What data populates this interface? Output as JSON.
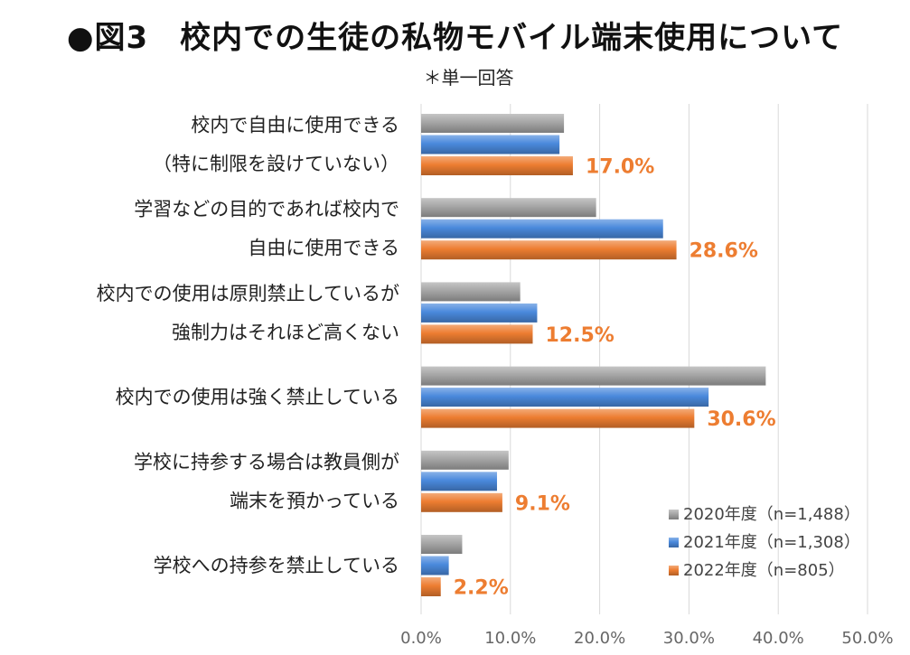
{
  "title": "●図3　校内での生徒の私物モバイル端末使用について",
  "subtitle": "＊単一回答",
  "chart_data": {
    "type": "bar",
    "orientation": "horizontal",
    "categories": [
      [
        "校内で自由に使用できる",
        "（特に制限を設けていない）"
      ],
      [
        "学習などの目的であれば校内で",
        "自由に使用できる"
      ],
      [
        "校内での使用は原則禁止しているが",
        "強制力はそれほど高くない"
      ],
      [
        "校内での使用は強く禁止している"
      ],
      [
        "学校に持参する場合は教員側が",
        "端末を預かっている"
      ],
      [
        "学校への持参を禁止している"
      ]
    ],
    "series": [
      {
        "name": "2020年度（n=1,488）",
        "color": "#A5A5A5",
        "values": [
          16.0,
          19.6,
          11.1,
          38.6,
          9.8,
          4.6
        ]
      },
      {
        "name": "2021年度（n=1,308）",
        "color": "#4A89DC",
        "values": [
          15.5,
          27.1,
          13.0,
          32.2,
          8.5,
          3.1
        ]
      },
      {
        "name": "2022年度（n=805）",
        "color": "#ED7D31",
        "values": [
          17.0,
          28.6,
          12.5,
          30.6,
          9.1,
          2.2
        ]
      }
    ],
    "data_labels": [
      "17.0%",
      "28.6%",
      "12.5%",
      "30.6%",
      "9.1%",
      "2.2%"
    ],
    "xlim": [
      0,
      50
    ],
    "xticks": [
      "0.0%",
      "10.0%",
      "20.0%",
      "30.0%",
      "40.0%",
      "50.0%"
    ],
    "grid": true,
    "legend_position": "bottom-right"
  }
}
